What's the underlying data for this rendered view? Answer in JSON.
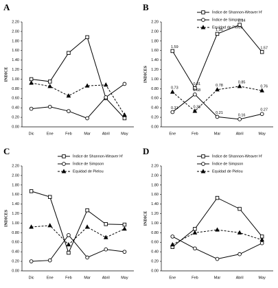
{
  "chart_data": [
    {
      "type": "line",
      "label": "A",
      "y_label": "INDICE",
      "categories": [
        "Dic",
        "Ene",
        "Feb",
        "Mar",
        "Abril",
        "May"
      ],
      "series": [
        {
          "color": "#000000",
          "marker": "square",
          "dashed": false,
          "values": [
            1.0,
            0.95,
            1.55,
            1.88,
            0.6,
            0.18
          ]
        },
        {
          "color": "#000000",
          "marker": "circle",
          "dashed": false,
          "values": [
            0.38,
            0.42,
            0.33,
            0.18,
            0.62,
            0.9
          ]
        },
        {
          "color": "#000000",
          "marker": "triangle",
          "dashed": true,
          "values": [
            0.92,
            0.85,
            0.65,
            0.86,
            0.88,
            0.25
          ]
        }
      ],
      "ylim": [
        0,
        2.2
      ],
      "yticks": [
        {
          "value": 0,
          "label": "0.00"
        },
        {
          "value": 0.2,
          "label": "0.20"
        },
        {
          "value": 0.4,
          "label": "0.40"
        },
        {
          "value": 0.6,
          "label": "0.60"
        },
        {
          "value": 0.8,
          "label": "0.80"
        },
        {
          "value": 1,
          "label": "1.00"
        },
        {
          "value": 1.2,
          "label": "1.20"
        },
        {
          "value": 1.4,
          "label": "1.40"
        },
        {
          "value": 1.6,
          "label": "1.60"
        },
        {
          "value": 1.8,
          "label": "1.80"
        },
        {
          "value": 2,
          "label": "2.00"
        },
        {
          "value": 2.2,
          "label": "2.20"
        }
      ]
    },
    {
      "type": "line",
      "label": "B",
      "y_label": "INDICES",
      "legend": "top",
      "data_labels": true,
      "categories": [
        "Ene",
        "Feb",
        "Mar",
        "Abril",
        "May"
      ],
      "series": [
        {
          "name": "Índice de Shannon-Weaver H'",
          "color": "#000000",
          "marker": "square",
          "dashed": false,
          "values": [
            1.59,
            0.81,
            1.95,
            2.14,
            1.57
          ]
        },
        {
          "name": "Índice de Simpson",
          "color": "#000000",
          "marker": "circle",
          "dashed": false,
          "values": [
            0.31,
            0.68,
            0.21,
            0.16,
            0.27
          ]
        },
        {
          "name": "Equidad de Pielou",
          "color": "#000000",
          "marker": "triangle",
          "dashed": true,
          "values": [
            0.73,
            0.33,
            0.78,
            0.85,
            0.76
          ]
        }
      ],
      "ylim": [
        0,
        2.2
      ],
      "yticks": [
        {
          "value": 0,
          "label": "0.00"
        },
        {
          "value": 0.2,
          "label": "0.20"
        },
        {
          "value": 0.4,
          "label": "0.40"
        },
        {
          "value": 0.6,
          "label": "0.60"
        },
        {
          "value": 0.8,
          "label": "0.80"
        },
        {
          "value": 1,
          "label": "1.00"
        },
        {
          "value": 1.2,
          "label": "1.20"
        },
        {
          "value": 1.4,
          "label": "1.40"
        },
        {
          "value": 1.6,
          "label": "1.60"
        },
        {
          "value": 1.8,
          "label": "1.80"
        },
        {
          "value": 2,
          "label": "2.00"
        },
        {
          "value": 2.2,
          "label": "2.20"
        }
      ]
    },
    {
      "type": "line",
      "label": "C",
      "y_label": "INDICES",
      "legend": "top",
      "categories": [
        "Dic",
        "Ene",
        "Feb",
        "Mar",
        "Abril",
        "May"
      ],
      "series": [
        {
          "name": "Índice de Shannon-Weaver H'",
          "color": "#000000",
          "marker": "square",
          "dashed": false,
          "values": [
            1.67,
            1.55,
            0.38,
            1.27,
            0.98,
            0.97
          ]
        },
        {
          "name": "Índice de Simpson",
          "color": "#000000",
          "marker": "circle",
          "dashed": false,
          "values": [
            0.2,
            0.22,
            0.75,
            0.28,
            0.45,
            0.4
          ]
        },
        {
          "name": "Equidad de Pielou",
          "color": "#000000",
          "marker": "triangle",
          "dashed": true,
          "values": [
            0.92,
            0.95,
            0.55,
            0.92,
            0.7,
            0.88
          ]
        }
      ],
      "ylim": [
        0,
        2.2
      ],
      "yticks": [
        {
          "value": 0,
          "label": "0.00"
        },
        {
          "value": 0.2,
          "label": "0.20"
        },
        {
          "value": 0.4,
          "label": "0.40"
        },
        {
          "value": 0.6,
          "label": "0.60"
        },
        {
          "value": 0.8,
          "label": "0.80"
        },
        {
          "value": 1,
          "label": "1.00"
        },
        {
          "value": 1.2,
          "label": "1.20"
        },
        {
          "value": 1.4,
          "label": "1.40"
        },
        {
          "value": 1.6,
          "label": "1.60"
        },
        {
          "value": 1.8,
          "label": "1.80"
        },
        {
          "value": 2,
          "label": "2.00"
        },
        {
          "value": 2.2,
          "label": "2.20"
        }
      ]
    },
    {
      "type": "line",
      "label": "D",
      "y_label": "INDICE",
      "legend": "top",
      "categories": [
        "Ene",
        "Feb",
        "Mar",
        "Abril",
        "May"
      ],
      "series": [
        {
          "name": "Índice de Shannon-Weaver H'",
          "color": "#000000",
          "marker": "square",
          "dashed": false,
          "values": [
            0.5,
            0.88,
            1.53,
            1.3,
            0.72
          ]
        },
        {
          "name": "Índice de Simpson",
          "color": "#000000",
          "marker": "circle",
          "dashed": false,
          "values": [
            0.72,
            0.47,
            0.25,
            0.35,
            0.58
          ]
        },
        {
          "name": "Equidad de Pielou",
          "color": "#000000",
          "marker": "triangle",
          "dashed": true,
          "values": [
            0.55,
            0.8,
            0.86,
            0.8,
            0.65
          ]
        }
      ],
      "ylim": [
        0,
        2.2
      ],
      "yticks": [
        {
          "value": 0,
          "label": "0.00"
        },
        {
          "value": 0.2,
          "label": "0.20"
        },
        {
          "value": 0.4,
          "label": "0.40"
        },
        {
          "value": 0.6,
          "label": "0.60"
        },
        {
          "value": 0.8,
          "label": "0.80"
        },
        {
          "value": 1,
          "label": "1.00"
        },
        {
          "value": 1.2,
          "label": "1.20"
        },
        {
          "value": 1.4,
          "label": "1.40"
        },
        {
          "value": 1.6,
          "label": "1.60"
        },
        {
          "value": 1.8,
          "label": "1.80"
        },
        {
          "value": 2,
          "label": "2.00"
        },
        {
          "value": 2.2,
          "label": "2.20"
        }
      ]
    }
  ]
}
